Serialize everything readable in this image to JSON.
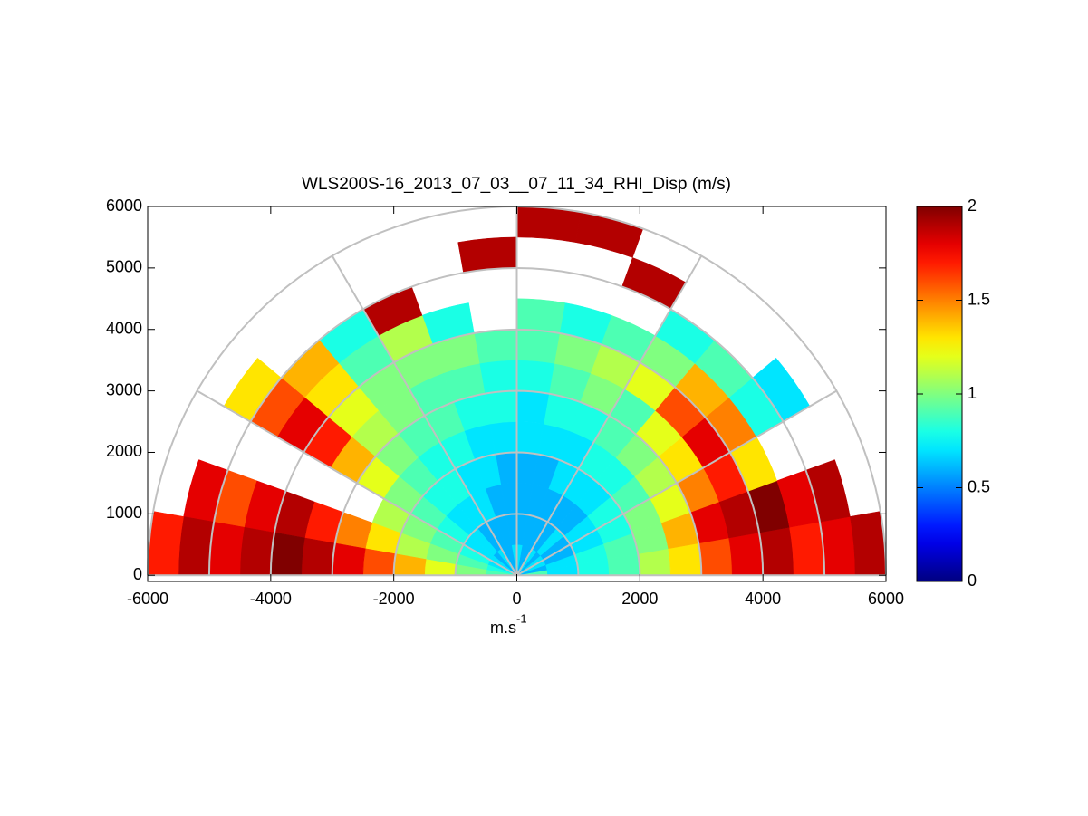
{
  "chart_data": {
    "type": "polar_heatmap",
    "title": "WLS200S-16_2013_07_03__07_11_34_RHI_Disp (m/s)",
    "xlabel": {
      "base": "m.s",
      "superscript": "-1"
    },
    "xlim": [
      -6000,
      6000
    ],
    "ylim": [
      -100,
      6000
    ],
    "xticks": [
      -6000,
      -4000,
      -2000,
      0,
      2000,
      4000,
      6000
    ],
    "yticks": [
      0,
      1000,
      2000,
      3000,
      4000,
      5000,
      6000
    ],
    "colormap": "jet",
    "clim": [
      0,
      2
    ],
    "cticks": [
      0,
      0.5,
      1,
      1.5,
      2
    ],
    "polar_grid": {
      "rings": [
        1000,
        2000,
        3000,
        4000,
        5000,
        6000
      ],
      "spokes": [
        0,
        30,
        60,
        90,
        120,
        150,
        180
      ]
    },
    "angle_bins": [
      0,
      10,
      20,
      30,
      40,
      50,
      60,
      70,
      80,
      90,
      100,
      110,
      120,
      130,
      140,
      150,
      160,
      170,
      180
    ],
    "range_bins": [
      0,
      500,
      1000,
      1500,
      2000,
      2500,
      3000,
      3500,
      4000,
      4500,
      5000,
      5500,
      6000
    ],
    "values": [
      [
        0.9,
        0.7,
        0.8,
        0.9,
        1.1,
        1.3,
        1.6,
        1.8,
        1.9,
        1.7,
        1.8,
        1.9
      ],
      [
        0.6,
        0.7,
        0.8,
        0.9,
        1.0,
        1.4,
        1.8,
        1.9,
        2.0,
        1.8,
        1.9,
        null
      ],
      [
        0.7,
        0.6,
        0.7,
        0.8,
        1.0,
        1.2,
        1.5,
        1.7,
        1.3,
        null,
        null,
        null
      ],
      [
        0.7,
        0.6,
        0.7,
        0.8,
        0.9,
        1.1,
        1.3,
        1.8,
        1.5,
        0.8,
        0.7,
        null
      ],
      [
        0.6,
        0.7,
        0.6,
        0.7,
        0.8,
        1.0,
        1.2,
        1.6,
        1.4,
        0.9,
        null,
        null
      ],
      [
        0.7,
        0.6,
        0.6,
        0.7,
        0.8,
        0.9,
        0.9,
        1.2,
        1.0,
        0.8,
        null,
        null
      ],
      [
        0.6,
        0.6,
        0.6,
        0.7,
        0.7,
        0.8,
        1.0,
        1.1,
        0.9,
        null,
        1.9,
        null
      ],
      [
        0.6,
        0.6,
        0.6,
        0.6,
        0.7,
        0.8,
        0.9,
        1.0,
        0.8,
        null,
        null,
        1.9
      ],
      [
        0.7,
        0.6,
        0.6,
        0.6,
        0.7,
        0.7,
        0.8,
        0.9,
        0.9,
        null,
        null,
        1.9
      ],
      [
        0.7,
        0.6,
        0.6,
        0.6,
        0.7,
        0.8,
        0.8,
        0.9,
        null,
        null,
        1.9,
        null
      ],
      [
        0.6,
        0.6,
        0.6,
        0.7,
        0.7,
        0.8,
        0.9,
        1.0,
        0.8,
        null,
        null,
        null
      ],
      [
        0.6,
        0.6,
        0.7,
        0.7,
        0.8,
        0.9,
        0.9,
        1.0,
        1.1,
        1.9,
        null,
        null
      ],
      [
        0.7,
        0.6,
        0.7,
        0.8,
        0.8,
        0.9,
        1.0,
        1.0,
        0.9,
        0.8,
        null,
        null
      ],
      [
        0.6,
        0.7,
        0.7,
        0.8,
        0.9,
        1.0,
        1.1,
        1.2,
        1.3,
        1.4,
        null,
        null
      ],
      [
        0.7,
        0.7,
        0.8,
        0.9,
        1.0,
        1.2,
        1.4,
        1.7,
        1.8,
        1.6,
        1.3,
        null
      ],
      [
        0.7,
        0.8,
        0.9,
        1.0,
        1.1,
        null,
        null,
        null,
        null,
        null,
        null,
        null
      ],
      [
        0.8,
        0.9,
        1.0,
        1.1,
        1.3,
        1.5,
        1.7,
        1.9,
        1.8,
        1.6,
        1.8,
        null
      ],
      [
        0.9,
        1.0,
        1.2,
        1.4,
        1.6,
        1.8,
        1.9,
        2.0,
        1.9,
        1.8,
        1.9,
        1.7
      ]
    ]
  }
}
